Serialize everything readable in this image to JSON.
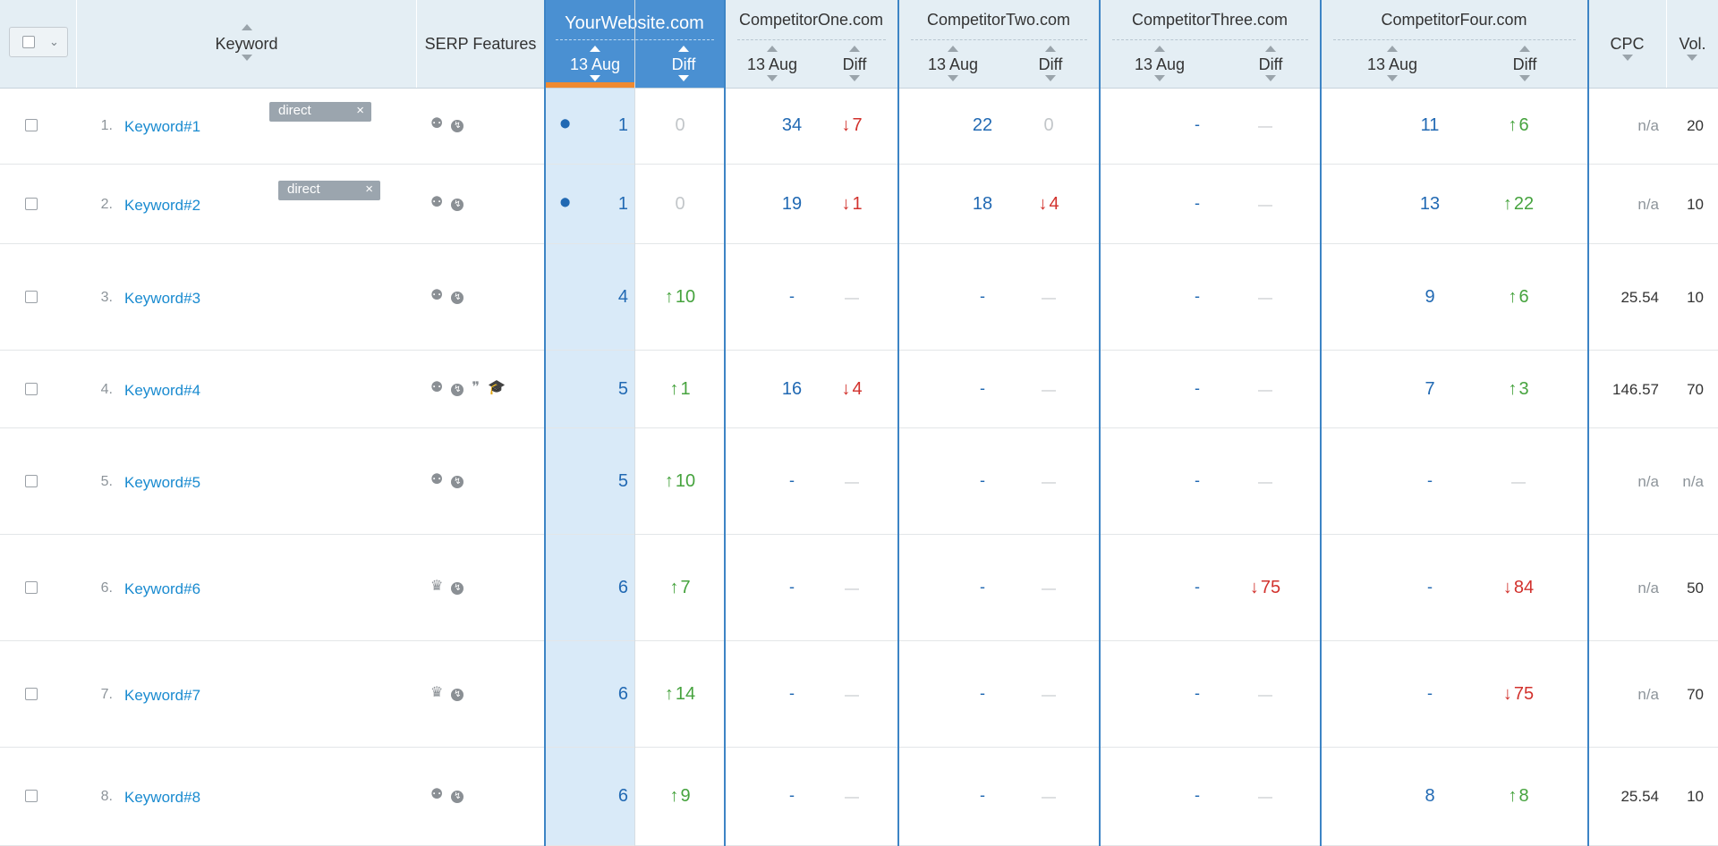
{
  "header": {
    "keyword_label": "Keyword",
    "serp_label": "SERP Features",
    "cpc_label": "CPC",
    "vol_label": "Vol.",
    "domains": [
      {
        "name": "YourWebsite.com",
        "date": "13 Aug",
        "diff": "Diff"
      },
      {
        "name": "CompetitorOne.com",
        "date": "13 Aug",
        "diff": "Diff"
      },
      {
        "name": "CompetitorTwo.com",
        "date": "13 Aug",
        "diff": "Diff"
      },
      {
        "name": "CompetitorThree.com",
        "date": "13 Aug",
        "diff": "Diff"
      },
      {
        "name": "CompetitorFour.com",
        "date": "13 Aug",
        "diff": "Diff"
      }
    ]
  },
  "rows": [
    {
      "num": "1.",
      "keyword": "Keyword#1",
      "tag": "direct",
      "tag_close": "×",
      "serp": [
        "location-icon",
        "bolt-icon"
      ],
      "you": {
        "pos": "1",
        "pin": true,
        "diff": "0",
        "dir": "none"
      },
      "c": [
        {
          "pos": "34",
          "diff": "7",
          "dir": "down"
        },
        {
          "pos": "22",
          "diff": "0",
          "dir": "none"
        },
        {
          "pos": "-",
          "diff": "—",
          "dir": "none"
        },
        {
          "pos": "11",
          "diff": "6",
          "dir": "up"
        }
      ],
      "cpc": "n/a",
      "vol": "20"
    },
    {
      "num": "2.",
      "keyword": "Keyword#2",
      "tag": "direct",
      "tag_close": "×",
      "serp": [
        "location-icon",
        "bolt-icon"
      ],
      "you": {
        "pos": "1",
        "pin": true,
        "diff": "0",
        "dir": "none"
      },
      "c": [
        {
          "pos": "19",
          "diff": "1",
          "dir": "down"
        },
        {
          "pos": "18",
          "diff": "4",
          "dir": "down"
        },
        {
          "pos": "-",
          "diff": "—",
          "dir": "none"
        },
        {
          "pos": "13",
          "diff": "22",
          "dir": "up"
        }
      ],
      "cpc": "n/a",
      "vol": "10"
    },
    {
      "num": "3.",
      "keyword": "Keyword#3",
      "tag": "",
      "tag_close": "",
      "serp": [
        "location-icon",
        "bolt-icon"
      ],
      "you": {
        "pos": "4",
        "pin": false,
        "diff": "10",
        "dir": "up"
      },
      "c": [
        {
          "pos": "-",
          "diff": "—",
          "dir": "none"
        },
        {
          "pos": "-",
          "diff": "—",
          "dir": "none"
        },
        {
          "pos": "-",
          "diff": "—",
          "dir": "none"
        },
        {
          "pos": "9",
          "diff": "6",
          "dir": "up"
        }
      ],
      "cpc": "25.54",
      "vol": "10"
    },
    {
      "num": "4.",
      "keyword": "Keyword#4",
      "tag": "",
      "tag_close": "",
      "serp": [
        "location-icon",
        "bolt-icon",
        "review-icon",
        "graduation-cap-icon"
      ],
      "you": {
        "pos": "5",
        "pin": false,
        "diff": "1",
        "dir": "up"
      },
      "c": [
        {
          "pos": "16",
          "diff": "4",
          "dir": "down"
        },
        {
          "pos": "-",
          "diff": "—",
          "dir": "none"
        },
        {
          "pos": "-",
          "diff": "—",
          "dir": "none"
        },
        {
          "pos": "7",
          "diff": "3",
          "dir": "up"
        }
      ],
      "cpc": "146.57",
      "vol": "70"
    },
    {
      "num": "5.",
      "keyword": "Keyword#5",
      "tag": "",
      "tag_close": "",
      "serp": [
        "location-icon",
        "bolt-icon"
      ],
      "you": {
        "pos": "5",
        "pin": false,
        "diff": "10",
        "dir": "up"
      },
      "c": [
        {
          "pos": "-",
          "diff": "—",
          "dir": "none"
        },
        {
          "pos": "-",
          "diff": "—",
          "dir": "none"
        },
        {
          "pos": "-",
          "diff": "—",
          "dir": "none"
        },
        {
          "pos": "-",
          "diff": "—",
          "dir": "none"
        }
      ],
      "cpc": "n/a",
      "vol": "n/a"
    },
    {
      "num": "6.",
      "keyword": "Keyword#6",
      "tag": "",
      "tag_close": "",
      "serp": [
        "crown-icon",
        "bolt-icon"
      ],
      "you": {
        "pos": "6",
        "pin": false,
        "diff": "7",
        "dir": "up"
      },
      "c": [
        {
          "pos": "-",
          "diff": "—",
          "dir": "none"
        },
        {
          "pos": "-",
          "diff": "—",
          "dir": "none"
        },
        {
          "pos": "-",
          "diff": "75",
          "dir": "down"
        },
        {
          "pos": "-",
          "diff": "84",
          "dir": "down"
        }
      ],
      "cpc": "n/a",
      "vol": "50"
    },
    {
      "num": "7.",
      "keyword": "Keyword#7",
      "tag": "",
      "tag_close": "",
      "serp": [
        "crown-icon",
        "bolt-icon"
      ],
      "you": {
        "pos": "6",
        "pin": false,
        "diff": "14",
        "dir": "up"
      },
      "c": [
        {
          "pos": "-",
          "diff": "—",
          "dir": "none"
        },
        {
          "pos": "-",
          "diff": "—",
          "dir": "none"
        },
        {
          "pos": "-",
          "diff": "—",
          "dir": "none"
        },
        {
          "pos": "-",
          "diff": "75",
          "dir": "down"
        }
      ],
      "cpc": "n/a",
      "vol": "70"
    },
    {
      "num": "8.",
      "keyword": "Keyword#8",
      "tag": "",
      "tag_close": "",
      "serp": [
        "location-icon",
        "bolt-icon"
      ],
      "you": {
        "pos": "6",
        "pin": false,
        "diff": "9",
        "dir": "up"
      },
      "c": [
        {
          "pos": "-",
          "diff": "—",
          "dir": "none"
        },
        {
          "pos": "-",
          "diff": "—",
          "dir": "none"
        },
        {
          "pos": "-",
          "diff": "—",
          "dir": "none"
        },
        {
          "pos": "8",
          "diff": "8",
          "dir": "up"
        }
      ],
      "cpc": "25.54",
      "vol": "10"
    }
  ],
  "colors": {
    "accent": "#4a90d2",
    "up": "#46a33e",
    "down": "#d2322d",
    "link": "#1a8bd0",
    "value": "#2169b3"
  }
}
